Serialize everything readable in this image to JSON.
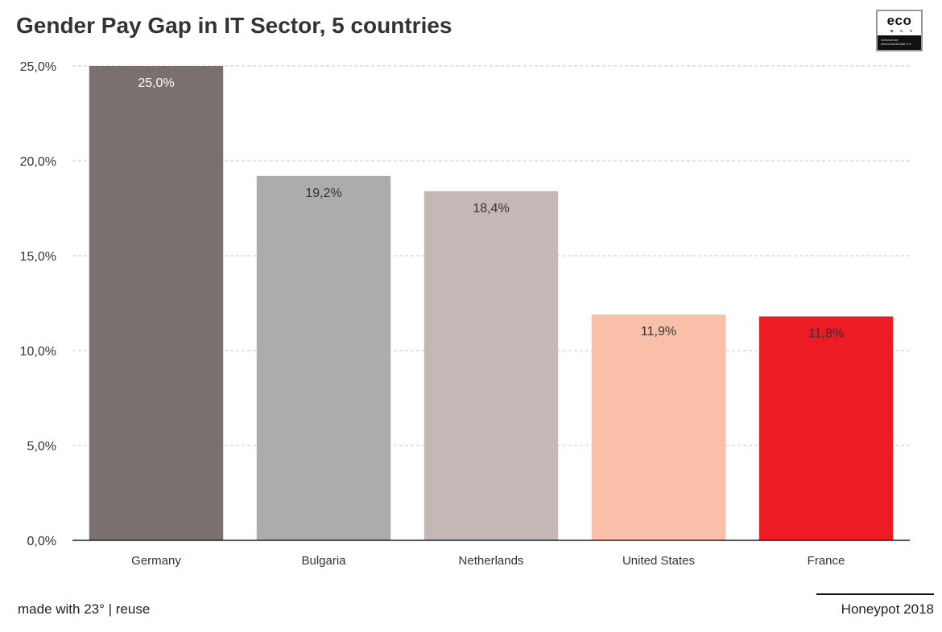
{
  "chart_data": {
    "type": "bar",
    "title": "Gender Pay Gap in IT Sector, 5 countries",
    "categories": [
      "Germany",
      "Bulgaria",
      "Netherlands",
      "United States",
      "France"
    ],
    "values": [
      25.0,
      19.2,
      18.4,
      11.9,
      11.8
    ],
    "value_labels": [
      "25,0%",
      "19,2%",
      "18,4%",
      "11,9%",
      "11,8%"
    ],
    "colors": [
      "#7a706f",
      "#acacad",
      "#c4b7b6",
      "#f9bfa8",
      "#ed1c24"
    ],
    "label_colors": [
      "#ffffff",
      "#333333",
      "#333333",
      "#333333",
      "#333333"
    ],
    "ylim": [
      0,
      25
    ],
    "yticks": [
      0,
      5,
      10,
      15,
      20,
      25
    ],
    "ytick_labels": [
      "0,0%",
      "5,0%",
      "10,0%",
      "15,0%",
      "20,0%",
      "25,0%"
    ],
    "xlabel": "",
    "ylabel": "",
    "grid": true,
    "grid_style": "dashed"
  },
  "logo": {
    "text": "eco",
    "tagline_1": "Verband der",
    "tagline_2": "Internetwirtschaft e.V.",
    "dot_colors": [
      "#ed1c24",
      "#999999",
      "#999999"
    ]
  },
  "footer": {
    "credit": "made with 23° | reuse",
    "source": "Honeypot 2018"
  }
}
